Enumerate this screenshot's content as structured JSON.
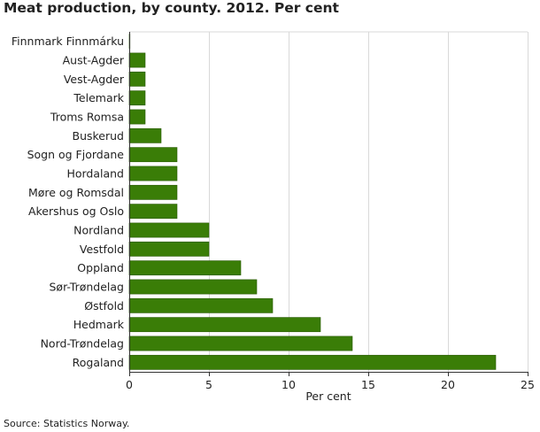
{
  "title": "Meat production, by county. 2012. Per cent",
  "source": "Source: Statistics Norway.",
  "chart_data": {
    "type": "bar",
    "orientation": "horizontal",
    "categories": [
      "Finnmark Finnmárku",
      "Aust-Agder",
      "Vest-Agder",
      "Telemark",
      "Troms Romsa",
      "Buskerud",
      "Sogn og Fjordane",
      "Hordaland",
      "Møre og Romsdal",
      "Akershus og Oslo",
      "Nordland",
      "Vestfold",
      "Oppland",
      "Sør-Trøndelag",
      "Østfold",
      "Hedmark",
      "Nord-Trøndelag",
      "Rogaland"
    ],
    "values": [
      0,
      1,
      1,
      1,
      1,
      2,
      3,
      3,
      3,
      3,
      5,
      5,
      7,
      8,
      9,
      12,
      14,
      23
    ],
    "xlabel": "Per cent",
    "xlim": [
      0,
      25
    ],
    "xticks": [
      0,
      5,
      10,
      15,
      20,
      25
    ],
    "grid": true,
    "bar_color": "#3a7d07",
    "bar_edge_color": "#2a5a05"
  }
}
